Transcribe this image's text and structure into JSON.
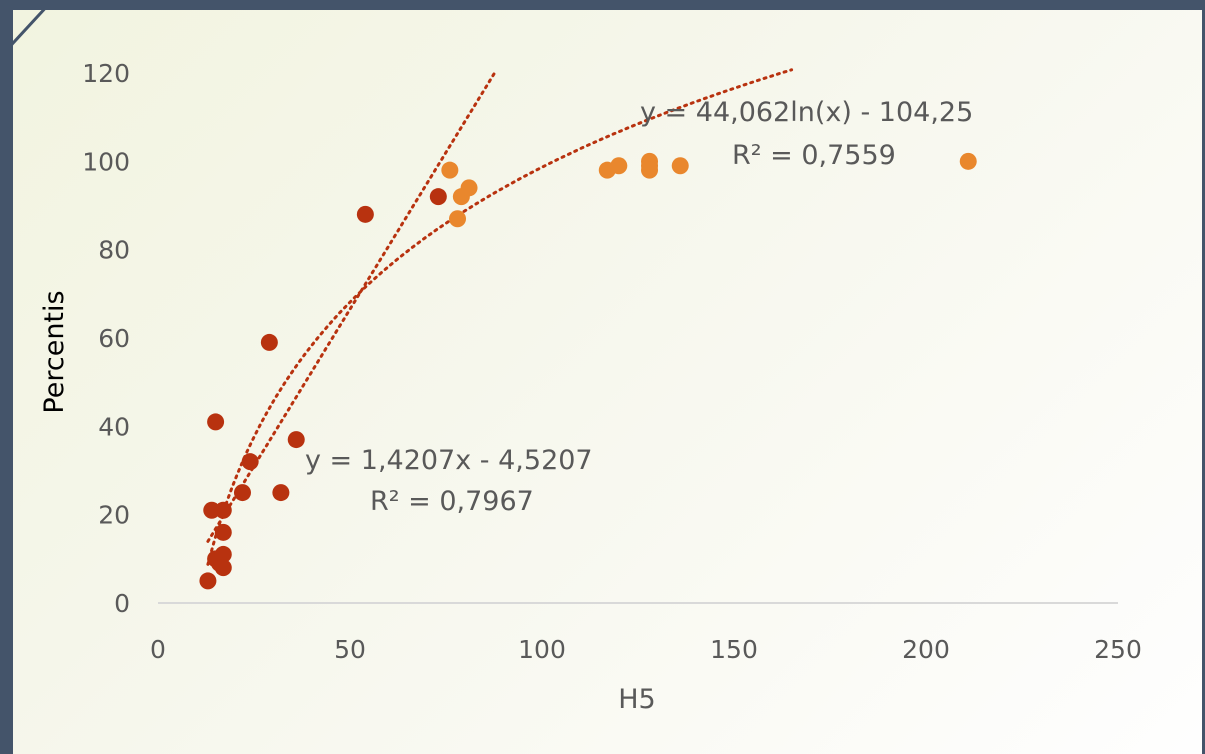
{
  "chart_data": {
    "type": "scatter",
    "title": "",
    "xlabel": "H5",
    "ylabel": "Percentis",
    "xlim": [
      0,
      250
    ],
    "ylim": [
      0,
      120
    ],
    "xticks": [
      0,
      50,
      100,
      150,
      200,
      250
    ],
    "yticks": [
      0,
      20,
      40,
      60,
      80,
      100,
      120
    ],
    "grid": false,
    "series": [
      {
        "color": "#b8320f",
        "points": [
          [
            13,
            5
          ],
          [
            14,
            21
          ],
          [
            15,
            41
          ],
          [
            15,
            10
          ],
          [
            16,
            9
          ],
          [
            17,
            11
          ],
          [
            17,
            16
          ],
          [
            17,
            21
          ],
          [
            17,
            8
          ],
          [
            22,
            25
          ],
          [
            24,
            32
          ],
          [
            29,
            59
          ],
          [
            32,
            25
          ],
          [
            36,
            37
          ],
          [
            54,
            88
          ],
          [
            73,
            92
          ]
        ]
      },
      {
        "color": "#e9872d",
        "points": [
          [
            76,
            98
          ],
          [
            78,
            87
          ],
          [
            79,
            92
          ],
          [
            81,
            94
          ],
          [
            117,
            98
          ],
          [
            120,
            99
          ],
          [
            128,
            99
          ],
          [
            128,
            100
          ],
          [
            128,
            98
          ],
          [
            136,
            99
          ],
          [
            211,
            100
          ]
        ]
      }
    ],
    "trendlines": [
      {
        "type": "linear",
        "slope": 1.4207,
        "intercept": -4.5207,
        "equation": "y = 1,4207x - 4,5207",
        "r2": "R² = 0,7967",
        "x_range": [
          13,
          88
        ],
        "color": "#b8320f"
      },
      {
        "type": "log",
        "a": 44.062,
        "b": -104.25,
        "equation": "y = 44,062ln(x) - 104,25",
        "r2": "R² = 0,7559",
        "x_range": [
          13,
          165
        ],
        "color": "#b8320f"
      }
    ]
  }
}
